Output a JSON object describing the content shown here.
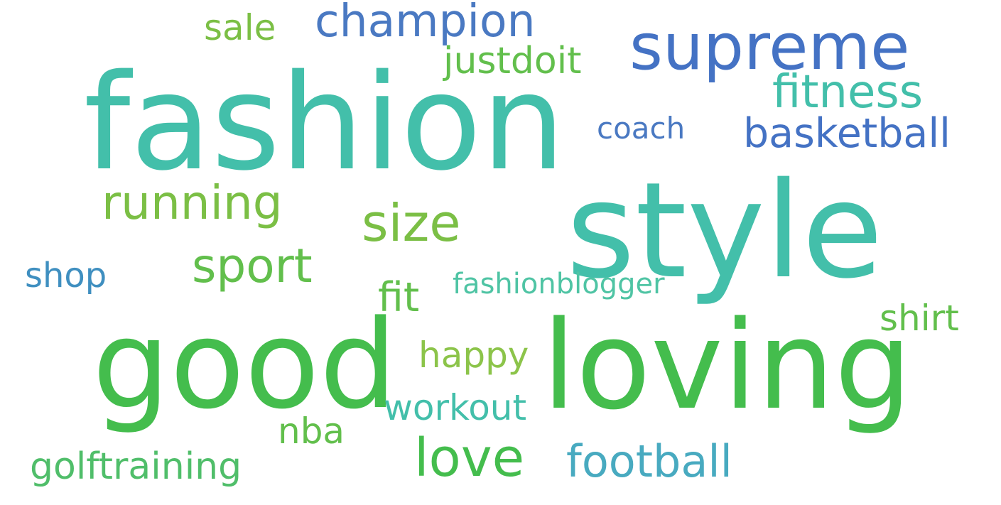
{
  "words": {
    "fashion": {
      "text": "fashion",
      "color": "#43bfaa"
    },
    "style": {
      "text": "style",
      "color": "#43bfaa"
    },
    "good": {
      "text": "good",
      "color": "#44bd4d"
    },
    "loving": {
      "text": "loving",
      "color": "#44bd4d"
    },
    "supreme": {
      "text": "supreme",
      "color": "#4472c4"
    },
    "champion": {
      "text": "champion",
      "color": "#4a79c2"
    },
    "sale": {
      "text": "sale",
      "color": "#7bbf45"
    },
    "justdoit": {
      "text": "justdoit",
      "color": "#62bf4c"
    },
    "fitness": {
      "text": "fitness",
      "color": "#43bfaa"
    },
    "coach": {
      "text": "coach",
      "color": "#4a79c2"
    },
    "basketball": {
      "text": "basketball",
      "color": "#4472c4"
    },
    "running": {
      "text": "running",
      "color": "#7bbf45"
    },
    "size": {
      "text": "size",
      "color": "#7bbf45"
    },
    "sport": {
      "text": "sport",
      "color": "#62bf4c"
    },
    "shop": {
      "text": "shop",
      "color": "#3f8fc0"
    },
    "fashionblogger": {
      "text": "fashionblogger",
      "color": "#4fc4a4"
    },
    "fit": {
      "text": "fit",
      "color": "#62bf4c"
    },
    "shirt": {
      "text": "shirt",
      "color": "#62bf4c"
    },
    "happy": {
      "text": "happy",
      "color": "#8cc44a"
    },
    "workout": {
      "text": "workout",
      "color": "#43bfaa"
    },
    "nba": {
      "text": "nba",
      "color": "#62bf4c"
    },
    "love": {
      "text": "love",
      "color": "#44bd4d"
    },
    "football": {
      "text": "football",
      "color": "#48aac0"
    },
    "golftraining": {
      "text": "golftraining",
      "color": "#50be6a"
    }
  }
}
